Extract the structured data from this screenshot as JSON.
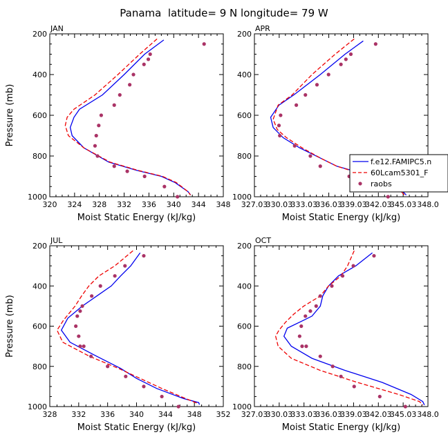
{
  "title": "Panama  latitude= 9 N longitude= 79 W",
  "colors": {
    "model1": "#0000ee",
    "model2": "#ee0000",
    "obs": "#aa3366"
  },
  "legend": {
    "entries": [
      {
        "label": "f.e12.FAMIPC5.n",
        "style": "solid",
        "color": "#0000ee"
      },
      {
        "label": "60Lcam5301_F",
        "style": "dashed",
        "color": "#ee0000"
      },
      {
        "label": "raobs",
        "style": "dots",
        "color": "#aa3366"
      }
    ]
  },
  "chart_data": [
    {
      "type": "line",
      "label": "JAN",
      "xlabel": "Moist Static Energy (kJ/kg)",
      "ylabel": "Pressure (mb)",
      "xlim": [
        320,
        348
      ],
      "ylim": [
        1000,
        200
      ],
      "xticks": [
        320,
        324,
        328,
        332,
        336,
        340,
        344,
        348
      ],
      "xtick_labels": [
        "320",
        "324",
        "328",
        "332",
        "336",
        "340",
        "344",
        "348"
      ],
      "yticks": [
        200,
        400,
        600,
        800,
        1000
      ],
      "ytick_labels": [
        "200",
        "400",
        "600",
        "800",
        "1000"
      ],
      "series": [
        {
          "name": "f.e12.FAMIPC5.n",
          "style": "solid",
          "color": "#0000ee",
          "x": [
            338.4,
            335.3,
            332.0,
            328.5,
            324.8,
            323.9,
            323.3,
            323.6,
            325.5,
            329.5,
            334.0,
            338.0,
            340.2,
            342.3,
            342.7
          ],
          "y": [
            230,
            300,
            400,
            500,
            570,
            610,
            660,
            700,
            760,
            830,
            870,
            900,
            930,
            975,
            990
          ]
        },
        {
          "name": "60Lcam5301_F",
          "style": "dashed",
          "color": "#ee0000",
          "x": [
            337.3,
            334.5,
            331.0,
            327.3,
            323.9,
            322.8,
            322.5,
            323.0,
            325.5,
            329.7,
            334.2,
            338.2,
            340.4,
            342.3,
            342.7
          ],
          "y": [
            225,
            300,
            400,
            500,
            570,
            610,
            650,
            700,
            760,
            830,
            870,
            900,
            930,
            975,
            992
          ]
        },
        {
          "name": "raobs",
          "style": "dots",
          "color": "#aa3366",
          "x": [
            344.9,
            336.2,
            335.9,
            335.2,
            333.5,
            332.9,
            331.3,
            330.4,
            328.3,
            327.9,
            327.5,
            327.3,
            327.7,
            330.4,
            332.5,
            335.3,
            338.5,
            340.6
          ],
          "y": [
            250,
            300,
            325,
            350,
            400,
            450,
            500,
            550,
            600,
            650,
            700,
            750,
            800,
            850,
            875,
            900,
            950,
            1000
          ]
        }
      ]
    },
    {
      "type": "line",
      "label": "APR",
      "xlabel": "Moist Static Energy (kJ/kg)",
      "ylabel": "Pressure (mb)",
      "xlim": [
        327.03,
        348.03
      ],
      "ylim": [
        1000,
        200
      ],
      "xticks": [
        327.03,
        330.03,
        333.03,
        336.03,
        339.03,
        342.03,
        345.03,
        348.03
      ],
      "xtick_labels": [
        "327.03",
        "330.03",
        "333.03",
        "336.03",
        "339.03",
        "342.03",
        "345.03",
        "348.0"
      ],
      "yticks": [
        200,
        400,
        600,
        800,
        1000
      ],
      "ytick_labels": [
        "200",
        "400",
        "600",
        "800",
        "1000"
      ],
      "series": [
        {
          "name": "f.e12.FAMIPC5.n",
          "style": "solid",
          "color": "#0000ee",
          "x": [
            340.2,
            338.0,
            335.0,
            331.8,
            330.0,
            329.0,
            329.3,
            330.5,
            332.5,
            335.0,
            337.0,
            340.5,
            343.5,
            345.0,
            345.4
          ],
          "y": [
            235,
            300,
            400,
            500,
            550,
            610,
            660,
            710,
            760,
            810,
            850,
            890,
            930,
            975,
            992
          ]
        },
        {
          "name": "60Lcam5301_F",
          "style": "dashed",
          "color": "#ee0000",
          "x": [
            339.1,
            336.8,
            334.0,
            331.6,
            329.9,
            329.3,
            329.8,
            330.9,
            332.8,
            335.0,
            337.0,
            340.2,
            343.3,
            344.8,
            345.2
          ],
          "y": [
            225,
            300,
            400,
            500,
            550,
            620,
            670,
            710,
            760,
            810,
            850,
            890,
            930,
            975,
            992
          ]
        },
        {
          "name": "raobs",
          "style": "dots",
          "color": "#aa3366",
          "x": [
            341.7,
            338.7,
            338.1,
            337.5,
            336.0,
            334.6,
            333.2,
            332.1,
            330.2,
            330.0,
            330.1,
            331.9,
            333.8,
            335.0,
            338.5,
            341.8,
            343.2
          ],
          "y": [
            250,
            300,
            325,
            350,
            400,
            450,
            500,
            550,
            600,
            650,
            700,
            750,
            800,
            850,
            900,
            950,
            1000
          ]
        }
      ]
    },
    {
      "type": "line",
      "label": "JUL",
      "xlabel": "Moist Static Energy (kJ/kg)",
      "ylabel": "Pressure (mb)",
      "xlim": [
        328,
        352
      ],
      "ylim": [
        1000,
        200
      ],
      "xticks": [
        328,
        332,
        336,
        340,
        344,
        348,
        352
      ],
      "xtick_labels": [
        "328",
        "332",
        "336",
        "340",
        "344",
        "348",
        "352"
      ],
      "yticks": [
        200,
        400,
        600,
        800,
        1000
      ],
      "ytick_labels": [
        "200",
        "400",
        "600",
        "800",
        "1000"
      ],
      "series": [
        {
          "name": "f.e12.FAMIPC5.n",
          "style": "solid",
          "color": "#0000ee",
          "x": [
            340.5,
            339.2,
            337.8,
            336.5,
            334.5,
            332.5,
            330.5,
            329.6,
            330.8,
            334.5,
            337.8,
            340.0,
            342.8,
            346.5,
            348.6,
            348.7
          ],
          "y": [
            235,
            300,
            350,
            400,
            450,
            500,
            560,
            620,
            680,
            750,
            810,
            860,
            910,
            960,
            980,
            990
          ]
        },
        {
          "name": "60Lcam5301_F",
          "style": "dashed",
          "color": "#ee0000",
          "x": [
            339.5,
            337.0,
            334.8,
            333.4,
            332.4,
            331.5,
            329.9,
            329.0,
            329.8,
            333.5,
            337.5,
            340.5,
            343.5,
            346.8,
            348.5
          ],
          "y": [
            225,
            300,
            350,
            400,
            450,
            500,
            570,
            620,
            680,
            750,
            810,
            860,
            910,
            960,
            985
          ]
        },
        {
          "name": "raobs",
          "style": "dots",
          "color": "#aa3366",
          "x": [
            341.0,
            338.4,
            337.0,
            335.0,
            333.8,
            332.5,
            332.2,
            331.8,
            331.6,
            332.0,
            332.2,
            332.7,
            333.7,
            336.0,
            338.5,
            341.0,
            343.5,
            345.8
          ],
          "y": [
            250,
            300,
            350,
            400,
            450,
            500,
            525,
            550,
            600,
            650,
            700,
            700,
            750,
            800,
            850,
            900,
            950,
            1000
          ]
        }
      ]
    },
    {
      "type": "line",
      "label": "OCT",
      "xlabel": "Moist Static Energy (kJ/kg)",
      "ylabel": "Pressure (mb)",
      "xlim": [
        327.03,
        348.03
      ],
      "ylim": [
        1000,
        200
      ],
      "xticks": [
        327.03,
        330.03,
        333.03,
        336.03,
        339.03,
        342.03,
        345.03,
        348.03
      ],
      "xtick_labels": [
        "327.03",
        "330.03",
        "333.03",
        "336.03",
        "339.03",
        "342.03",
        "345.03",
        "348.0"
      ],
      "yticks": [
        200,
        400,
        600,
        800,
        1000
      ],
      "ytick_labels": [
        "200",
        "400",
        "600",
        "800",
        "1000"
      ],
      "series": [
        {
          "name": "f.e12.FAMIPC5.n",
          "style": "solid",
          "color": "#0000ee",
          "x": [
            341.3,
            339.3,
            337.2,
            336.0,
            335.3,
            335.0,
            334.0,
            333.0,
            331.0,
            330.6,
            331.5,
            334.0,
            338.0,
            342.5,
            346.0,
            347.4,
            347.6
          ],
          "y": [
            235,
            300,
            350,
            400,
            450,
            500,
            550,
            570,
            610,
            650,
            700,
            760,
            820,
            880,
            940,
            975,
            992
          ]
        },
        {
          "name": "60Lcam5301_F",
          "style": "dashed",
          "color": "#ee0000",
          "x": [
            339.1,
            338.3,
            337.5,
            336.0,
            335.0,
            333.0,
            331.8,
            330.8,
            330.0,
            329.6,
            329.9,
            331.5,
            335.0,
            339.5,
            344.5,
            347.0,
            347.4
          ],
          "y": [
            225,
            300,
            350,
            400,
            450,
            500,
            540,
            580,
            620,
            650,
            700,
            760,
            820,
            880,
            940,
            975,
            992
          ]
        },
        {
          "name": "raobs",
          "style": "dots",
          "color": "#aa3366",
          "x": [
            341.5,
            339.0,
            337.7,
            336.4,
            335.0,
            334.5,
            333.8,
            333.2,
            332.7,
            332.5,
            332.8,
            333.3,
            335.0,
            336.5,
            337.5,
            339.1,
            342.2,
            345.3
          ],
          "y": [
            250,
            300,
            350,
            400,
            450,
            500,
            525,
            550,
            600,
            650,
            700,
            700,
            750,
            800,
            850,
            900,
            950,
            1000
          ]
        }
      ]
    }
  ]
}
